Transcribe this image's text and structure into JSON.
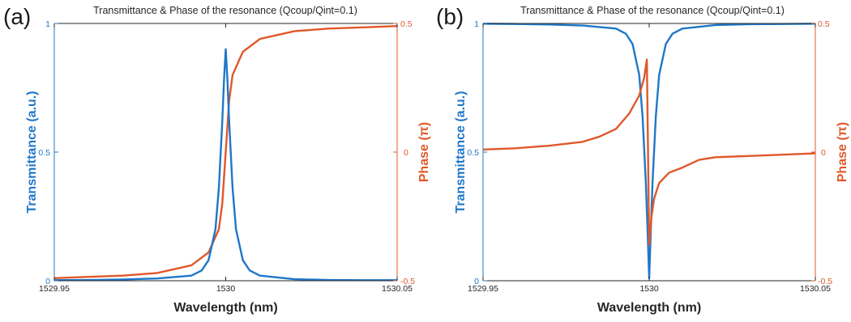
{
  "chart_data": [
    {
      "type": "line",
      "panel_label": "(a)",
      "title": "Transmittance & Phase of the resonance (Qcoup/Qint=0.1)",
      "xlabel": "Wavelength (nm)",
      "ylabel_left": "Transmittance (a.u.)",
      "ylabel_right": "Phase (π)",
      "xlim": [
        1529.95,
        1530.05
      ],
      "ylim_left": [
        0,
        1
      ],
      "ylim_right": [
        -0.5,
        0.5
      ],
      "x_ticks": [
        "1529.95",
        "1530",
        "1530.05"
      ],
      "y_ticks_left": [
        "0",
        "0.5",
        "1"
      ],
      "y_ticks_right": [
        "-0.5",
        "0",
        "0.5"
      ],
      "series": [
        {
          "axis": "left",
          "color": "#1f77c9",
          "x": [
            1529.95,
            1529.96,
            1529.97,
            1529.98,
            1529.99,
            1529.993,
            1529.995,
            1529.997,
            1529.998,
            1529.999,
            1529.9995,
            1530.0,
            1530.0005,
            1530.001,
            1530.002,
            1530.003,
            1530.005,
            1530.007,
            1530.01,
            1530.02,
            1530.03,
            1530.04,
            1530.05
          ],
          "values": [
            0.002,
            0.003,
            0.005,
            0.009,
            0.02,
            0.04,
            0.08,
            0.2,
            0.36,
            0.62,
            0.78,
            0.9,
            0.78,
            0.62,
            0.36,
            0.2,
            0.08,
            0.04,
            0.02,
            0.006,
            0.003,
            0.002,
            0.002
          ]
        },
        {
          "axis": "right",
          "color": "#e0582a",
          "x": [
            1529.95,
            1529.96,
            1529.97,
            1529.98,
            1529.99,
            1529.995,
            1529.998,
            1529.999,
            1530.0,
            1530.001,
            1530.002,
            1530.005,
            1530.01,
            1530.02,
            1530.03,
            1530.04,
            1530.05
          ],
          "values": [
            -0.49,
            -0.485,
            -0.48,
            -0.47,
            -0.44,
            -0.39,
            -0.3,
            -0.2,
            0.0,
            0.2,
            0.3,
            0.39,
            0.44,
            0.47,
            0.48,
            0.485,
            0.49
          ]
        }
      ]
    },
    {
      "type": "line",
      "panel_label": "(b)",
      "title": "Transmittance & Phase of the resonance (Qcoup/Qint=0.1)",
      "xlabel": "Wavelength (nm)",
      "ylabel_left": "Transmittance (a.u.)",
      "ylabel_right": "Phase (π)",
      "xlim": [
        1529.95,
        1530.05
      ],
      "ylim_left": [
        0,
        1
      ],
      "ylim_right": [
        -0.5,
        0.5
      ],
      "x_ticks": [
        "1529.95",
        "1530",
        "1530.05"
      ],
      "y_ticks_left": [
        "0",
        "0.5",
        "1"
      ],
      "y_ticks_right": [
        "-0.5",
        "0",
        "0.5"
      ],
      "series": [
        {
          "axis": "left",
          "color": "#1f77c9",
          "x": [
            1529.95,
            1529.96,
            1529.97,
            1529.98,
            1529.99,
            1529.993,
            1529.995,
            1529.997,
            1529.998,
            1529.999,
            1529.9995,
            1530.0,
            1530.0005,
            1530.001,
            1530.002,
            1530.003,
            1530.005,
            1530.007,
            1530.01,
            1530.02,
            1530.03,
            1530.04,
            1530.05
          ],
          "values": [
            0.999,
            0.998,
            0.996,
            0.992,
            0.98,
            0.96,
            0.92,
            0.8,
            0.64,
            0.38,
            0.2,
            0.01,
            0.2,
            0.38,
            0.64,
            0.8,
            0.92,
            0.96,
            0.98,
            0.994,
            0.997,
            0.998,
            0.999
          ]
        },
        {
          "axis": "right",
          "color": "#e0582a",
          "x": [
            1529.95,
            1529.96,
            1529.97,
            1529.98,
            1529.985,
            1529.99,
            1529.994,
            1529.997,
            1529.9985,
            1529.9993,
            1530.0,
            1530.0007,
            1530.0015,
            1530.003,
            1530.006,
            1530.01,
            1530.015,
            1530.02,
            1530.03,
            1530.04,
            1530.05
          ],
          "values": [
            0.01,
            0.015,
            0.025,
            0.04,
            0.06,
            0.09,
            0.15,
            0.22,
            0.29,
            0.36,
            -0.36,
            -0.25,
            -0.18,
            -0.12,
            -0.08,
            -0.06,
            -0.03,
            -0.02,
            -0.015,
            -0.01,
            -0.005
          ]
        }
      ]
    }
  ]
}
